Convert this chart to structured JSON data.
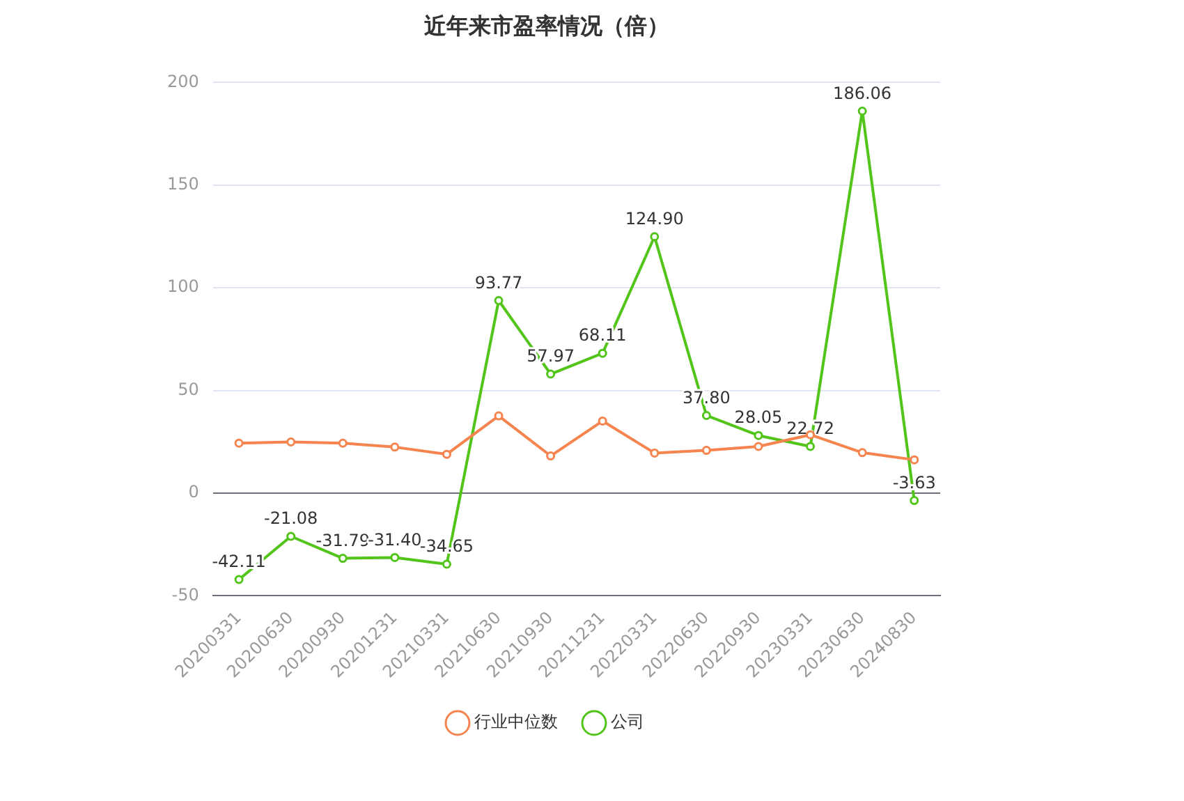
{
  "chart_data": {
    "type": "line",
    "title": "近年来市盈率情况（倍）",
    "categories": [
      "20200331",
      "20200630",
      "20200930",
      "20201231",
      "20210331",
      "20210630",
      "20210930",
      "20211231",
      "20220331",
      "20220630",
      "20220930",
      "20230331",
      "20230630",
      "20240830"
    ],
    "series": [
      {
        "name": "公司",
        "color": "#52c41a",
        "values": [
          -42.11,
          -21.08,
          -31.79,
          -31.4,
          -34.65,
          93.77,
          57.97,
          68.11,
          124.9,
          37.8,
          28.05,
          22.72,
          186.06,
          -3.63
        ],
        "value_labels": [
          "-42.11",
          "-21.08",
          "-31.79",
          "-31.40",
          "-34.65",
          "93.77",
          "57.97",
          "68.11",
          "124.90",
          "37.80",
          "28.05",
          "22.72",
          "186.06",
          "-3.63"
        ]
      },
      {
        "name": "行业中位数",
        "color": "#f5844f",
        "values": [
          24.3,
          24.9,
          24.3,
          22.4,
          18.9,
          37.6,
          18.1,
          35.1,
          19.5,
          20.8,
          22.7,
          28.4,
          19.7,
          16.2
        ]
      }
    ],
    "ylim": [
      -50,
      200
    ],
    "yticks": [
      -50,
      0,
      50,
      100,
      150,
      200
    ],
    "grid": "y",
    "legend": "bottom",
    "marker": "circle",
    "line_style": "solid"
  }
}
